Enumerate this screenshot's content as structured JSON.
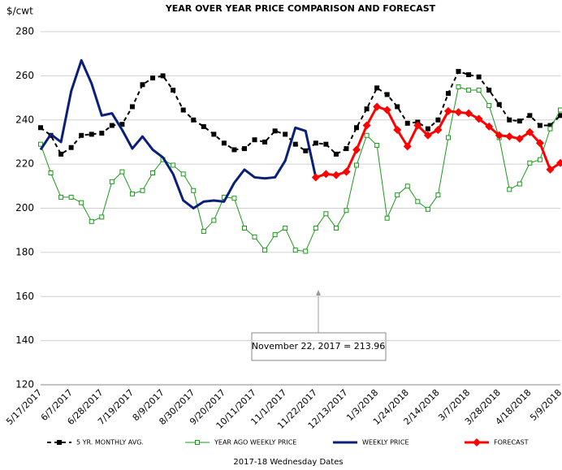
{
  "chart_data": {
    "type": "line",
    "title": "YEAR OVER YEAR PRICE COMPARISON AND FORECAST",
    "y_label": "$/cwt",
    "x_label": "2017-18 Wednesday Dates",
    "categories": [
      "5/17/2017",
      null,
      null,
      "6/7/2017",
      null,
      null,
      "6/28/2017",
      null,
      null,
      "7/19/2017",
      null,
      null,
      "8/9/2017",
      null,
      null,
      "8/30/2017",
      null,
      null,
      "9/20/2017",
      null,
      null,
      "10/11/2017",
      null,
      null,
      "11/1/2017",
      null,
      null,
      "11/22/2017",
      null,
      null,
      "12/13/2017",
      null,
      null,
      "1/3/2018",
      null,
      null,
      "1/24/2018",
      null,
      null,
      "2/14/2018",
      null,
      null,
      "3/7/2018",
      null,
      null,
      "3/28/2018",
      null,
      null,
      "4/18/2018",
      null,
      null,
      "5/9/2018"
    ],
    "ylim": [
      120,
      280
    ],
    "yticks": [
      120,
      140,
      160,
      180,
      200,
      220,
      240,
      260,
      280
    ],
    "grid": true,
    "legend": "bottom",
    "series": [
      {
        "name": "5 YR. MONTHLY AVG.",
        "color": "#000000",
        "line_style": "dashed",
        "marker": "square",
        "values": [
          236.5,
          233,
          224.5,
          227.5,
          233,
          233.5,
          234,
          237.5,
          238,
          246,
          256,
          259,
          260,
          253.5,
          244.5,
          240,
          237,
          233.5,
          229.5,
          226.5,
          227,
          231,
          230,
          235,
          233.5,
          229,
          226,
          229.5,
          229,
          224.5,
          227,
          236.5,
          245,
          254.5,
          251.5,
          246,
          238.5,
          239,
          236,
          240,
          252,
          262,
          260.5,
          259.5,
          253.5,
          247,
          240,
          239.5,
          242,
          237.5,
          237.5,
          242
        ]
      },
      {
        "name": "YEAR AGO WEEKLY PRICE",
        "color": "#1a9a1a",
        "line_style": "solid",
        "marker": "hollow-square",
        "values": [
          229,
          216,
          205,
          205,
          202.5,
          194,
          196,
          212,
          216.5,
          206.5,
          208,
          216,
          222,
          219.5,
          215.5,
          208,
          189.5,
          194.5,
          205,
          204.5,
          191,
          187,
          181,
          188,
          191,
          181,
          180.5,
          191,
          197.5,
          191,
          199,
          219.5,
          233,
          228.5,
          195.5,
          206,
          210,
          203,
          199.5,
          206,
          232,
          255,
          253.5,
          253.5,
          246.5,
          232,
          208.5,
          211,
          220.5,
          222,
          236,
          244.5
        ]
      },
      {
        "name": "WEEKLY PRICE",
        "color": "#0a1f7a",
        "line_style": "thick",
        "marker": "none",
        "values": [
          226.5,
          233.5,
          230,
          253,
          267,
          256.5,
          242,
          243,
          235.5,
          227,
          232.5,
          226.5,
          223,
          215.5,
          203.5,
          200,
          203,
          203.5,
          203,
          211.5,
          217.5,
          214,
          213.5,
          214,
          221.5,
          236.5,
          235,
          213.96,
          null,
          null,
          null,
          null,
          null,
          null,
          null,
          null,
          null,
          null,
          null,
          null,
          null,
          null,
          null,
          null,
          null,
          null,
          null,
          null,
          null,
          null,
          null,
          null
        ]
      },
      {
        "name": "FORECAST",
        "color": "#ff0000",
        "line_style": "thick",
        "marker": "diamond",
        "values": [
          null,
          null,
          null,
          null,
          null,
          null,
          null,
          null,
          null,
          null,
          null,
          null,
          null,
          null,
          null,
          null,
          null,
          null,
          null,
          null,
          null,
          null,
          null,
          null,
          null,
          null,
          null,
          213.96,
          215.5,
          215,
          216.5,
          226.5,
          237.5,
          246,
          244.5,
          235.5,
          228,
          237.5,
          233,
          235.5,
          244,
          243.5,
          243,
          240.5,
          237,
          233,
          232.5,
          231.5,
          234.5,
          229.5,
          217.5,
          220.5
        ]
      }
    ],
    "annotation": "November 22, 2017  = 213.96"
  }
}
